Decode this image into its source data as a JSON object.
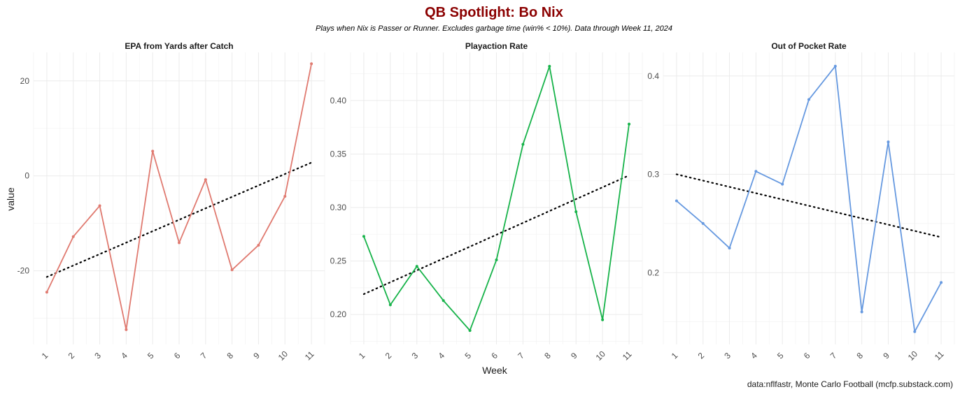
{
  "chart_data": {
    "type": "line",
    "title": "QB Spotlight: Bo Nix",
    "subtitle": "Plays when Nix is Passer or Runner. Excludes garbage time (win% < 10%). Data through Week 11, 2024",
    "xlabel": "Week",
    "ylabel": "value",
    "caption": "data:nflfastr, Monte Carlo Football (mcfp.substack.com)",
    "x": [
      1,
      2,
      3,
      4,
      5,
      6,
      7,
      8,
      9,
      10,
      11
    ],
    "x_tick_labels": [
      "1",
      "2",
      "3",
      "4",
      "5",
      "6",
      "7",
      "8",
      "9",
      "10",
      "11"
    ],
    "facets": [
      {
        "title": "EPA from Yards after Catch",
        "color": "#e07a70",
        "values": [
          -24.5,
          -12.8,
          -6.3,
          -32.4,
          5.2,
          -14.1,
          -0.8,
          -19.8,
          -14.6,
          -4.3,
          23.6
        ],
        "trend": [
          -21.3,
          2.8
        ],
        "yticks": [
          -20,
          0,
          20
        ],
        "y_tick_labels": [
          "-20",
          "0",
          "20"
        ],
        "ylim": [
          -35.5,
          26
        ]
      },
      {
        "title": "Playaction Rate",
        "color": "#17b34a",
        "values": [
          0.273,
          0.209,
          0.245,
          0.213,
          0.185,
          0.251,
          0.359,
          0.432,
          0.296,
          0.195,
          0.378
        ],
        "trend": [
          0.219,
          0.33
        ],
        "yticks": [
          0.2,
          0.25,
          0.3,
          0.35,
          0.4
        ],
        "y_tick_labels": [
          "0.20",
          "0.25",
          "0.30",
          "0.35",
          "0.40"
        ],
        "ylim": [
          0.172,
          0.445
        ]
      },
      {
        "title": "Out of Pocket Rate",
        "color": "#6699e0",
        "values": [
          0.273,
          0.25,
          0.225,
          0.303,
          0.29,
          0.376,
          0.41,
          0.16,
          0.333,
          0.14,
          0.19
        ],
        "trend": [
          0.3,
          0.236
        ],
        "yticks": [
          0.2,
          0.3,
          0.4
        ],
        "y_tick_labels": [
          "0.2",
          "0.3",
          "0.4"
        ],
        "ylim": [
          0.127,
          0.424
        ]
      }
    ],
    "grid": true,
    "legend": "none"
  }
}
